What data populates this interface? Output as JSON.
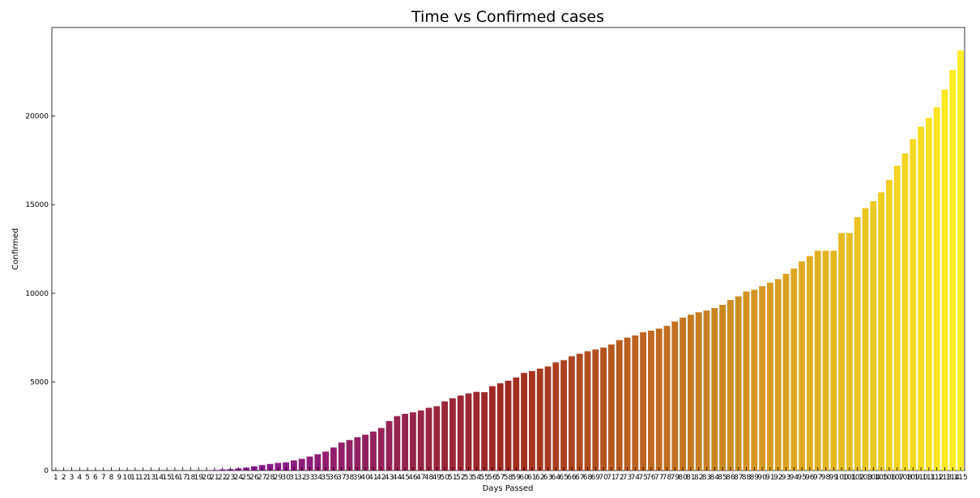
{
  "chart_data": {
    "type": "bar",
    "title": "Time vs Confirmed cases",
    "xlabel": "Days Passed",
    "ylabel": "Confirmed",
    "categories": [
      1,
      2,
      3,
      4,
      5,
      6,
      7,
      8,
      9,
      10,
      11,
      12,
      13,
      14,
      15,
      16,
      17,
      18,
      19,
      20,
      21,
      22,
      23,
      24,
      25,
      26,
      27,
      28,
      29,
      30,
      31,
      32,
      33,
      34,
      35,
      36,
      37,
      38,
      39,
      40,
      41,
      42,
      43,
      44,
      45,
      46,
      47,
      48,
      49,
      50,
      51,
      52,
      53,
      54,
      55,
      56,
      57,
      58,
      59,
      60,
      61,
      62,
      63,
      64,
      65,
      66,
      67,
      68,
      69,
      70,
      71,
      72,
      73,
      74,
      75,
      76,
      77,
      78,
      79,
      80,
      81,
      82,
      83,
      84,
      85,
      86,
      87,
      88,
      89,
      90,
      91,
      92,
      93,
      94,
      95,
      96,
      97,
      98,
      99,
      100,
      101,
      102,
      103,
      104,
      105,
      106,
      107,
      108,
      109,
      110,
      111,
      112,
      113,
      114,
      115
    ],
    "values": [
      0,
      0,
      0,
      0,
      0,
      0,
      0,
      0,
      0,
      0,
      0,
      0,
      0,
      0,
      0,
      0,
      0,
      0,
      0,
      0,
      30,
      60,
      80,
      120,
      160,
      240,
      310,
      370,
      430,
      460,
      570,
      660,
      790,
      920,
      1070,
      1300,
      1580,
      1720,
      1880,
      2020,
      2200,
      2400,
      2790,
      3070,
      3200,
      3280,
      3390,
      3540,
      3630,
      3900,
      4080,
      4230,
      4350,
      4440,
      4420,
      4760,
      4920,
      5070,
      5250,
      5510,
      5610,
      5750,
      5870,
      6100,
      6230,
      6450,
      6590,
      6730,
      6830,
      6940,
      7110,
      7360,
      7500,
      7620,
      7800,
      7890,
      8010,
      8160,
      8410,
      8630,
      8790,
      8930,
      9030,
      9170,
      9350,
      9620,
      9830,
      10100,
      10200,
      10400,
      10600,
      10800,
      11100,
      11400,
      11800,
      12100,
      12400,
      12400,
      12400,
      13400,
      13400,
      14300,
      14800,
      15200,
      15700,
      16400,
      17200,
      17900,
      18700,
      19400,
      19900,
      20500,
      21500,
      22600,
      23700
    ],
    "ylim": [
      0,
      25000
    ],
    "yticks": [
      0,
      5000,
      10000,
      15000,
      20000
    ],
    "color_scale": [
      "#7b0fe8",
      "#a02a20",
      "#ffee22"
    ],
    "grid": false
  }
}
